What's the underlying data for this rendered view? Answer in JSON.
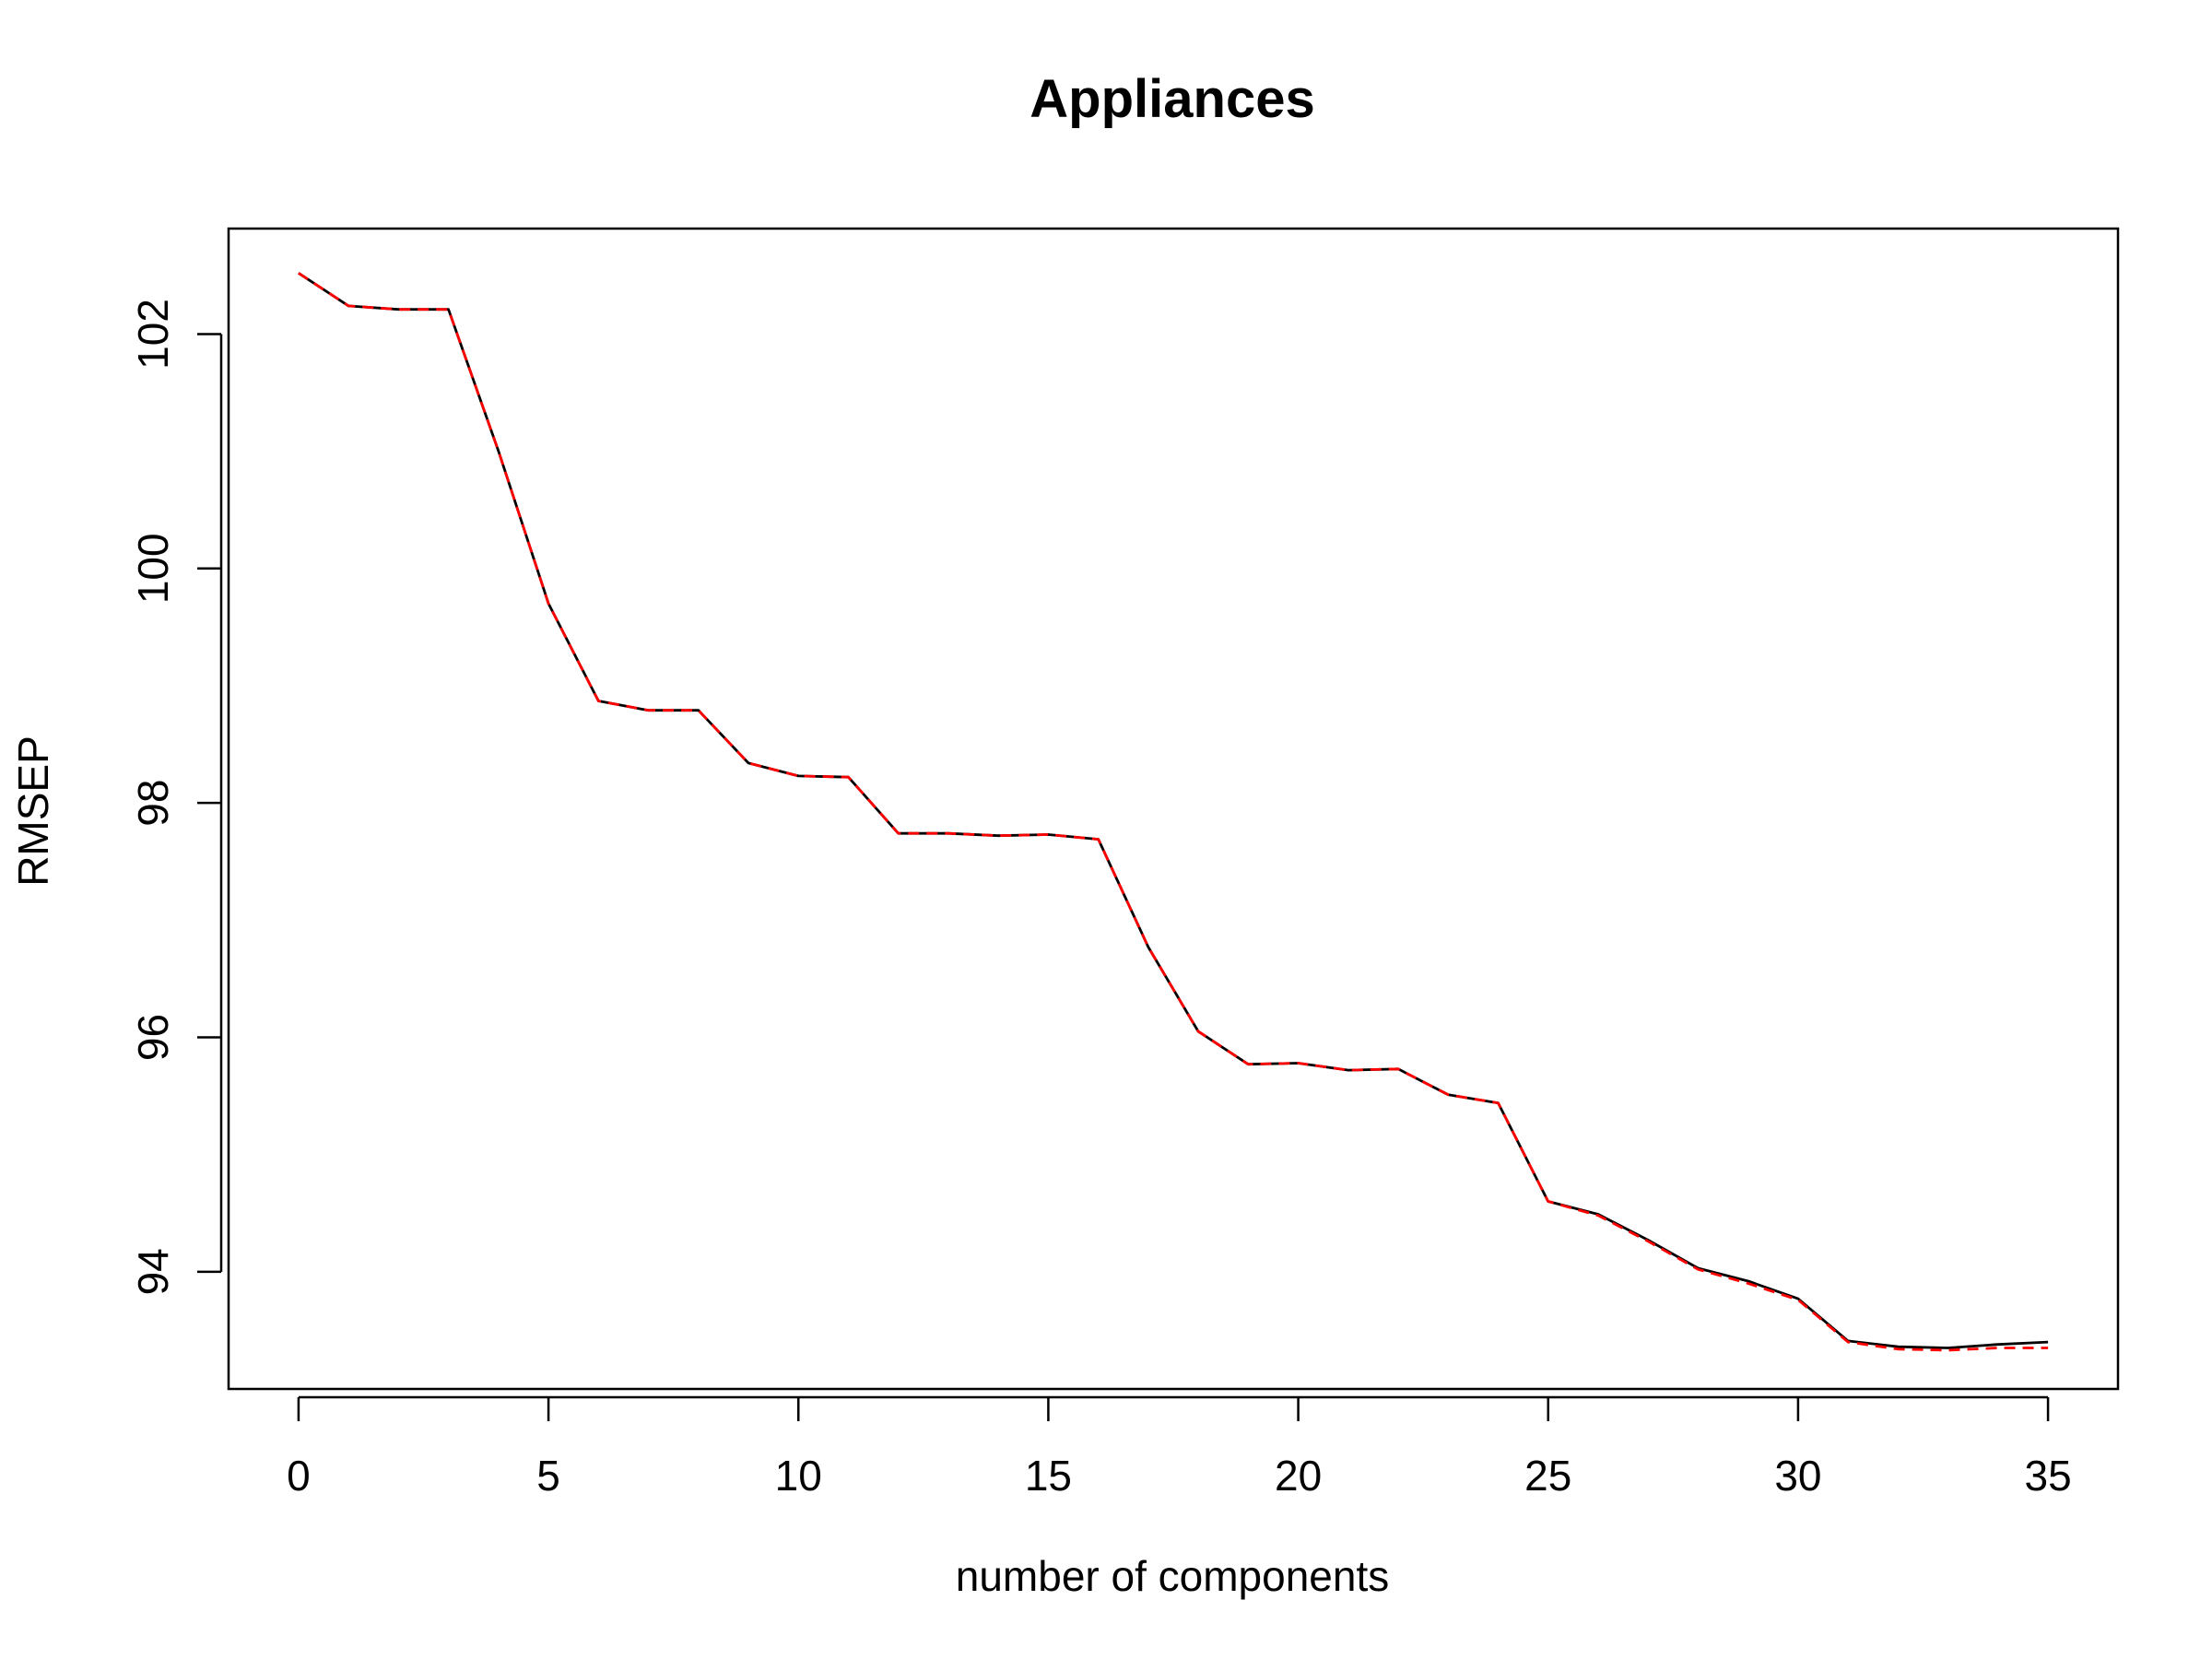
{
  "chart_data": {
    "type": "line",
    "title": "Appliances",
    "xlabel": "number of components",
    "ylabel": "RMSEP",
    "xlim": [
      -1.4,
      36.4
    ],
    "ylim": [
      93.0,
      102.9
    ],
    "x_ticks": [
      0,
      5,
      10,
      15,
      20,
      25,
      30,
      35
    ],
    "y_ticks": [
      94,
      96,
      98,
      100,
      102
    ],
    "grid": false,
    "legend": "none",
    "x": [
      0,
      1,
      2,
      3,
      4,
      5,
      6,
      7,
      8,
      9,
      10,
      11,
      12,
      13,
      14,
      15,
      16,
      17,
      18,
      19,
      20,
      21,
      22,
      23,
      24,
      25,
      26,
      27,
      28,
      29,
      30,
      31,
      32,
      33,
      34,
      35
    ],
    "series": [
      {
        "color": "#000000",
        "dash": "solid",
        "values": [
          102.52,
          102.24,
          102.21,
          102.21,
          101.0,
          99.7,
          98.87,
          98.79,
          98.79,
          98.34,
          98.23,
          98.22,
          97.74,
          97.74,
          97.72,
          97.73,
          97.69,
          96.77,
          96.05,
          95.77,
          95.78,
          95.72,
          95.73,
          95.51,
          95.44,
          94.6,
          94.49,
          94.27,
          94.03,
          93.92,
          93.77,
          93.41,
          93.36,
          93.35,
          93.38,
          93.4
        ]
      },
      {
        "color": "#ff0000",
        "dash": "dashed",
        "values": [
          102.52,
          102.24,
          102.21,
          102.21,
          101.0,
          99.7,
          98.87,
          98.79,
          98.79,
          98.34,
          98.23,
          98.22,
          97.74,
          97.74,
          97.72,
          97.73,
          97.69,
          96.77,
          96.05,
          95.77,
          95.78,
          95.72,
          95.73,
          95.51,
          95.44,
          94.6,
          94.48,
          94.26,
          94.02,
          93.9,
          93.76,
          93.4,
          93.34,
          93.33,
          93.35,
          93.35
        ]
      }
    ]
  }
}
